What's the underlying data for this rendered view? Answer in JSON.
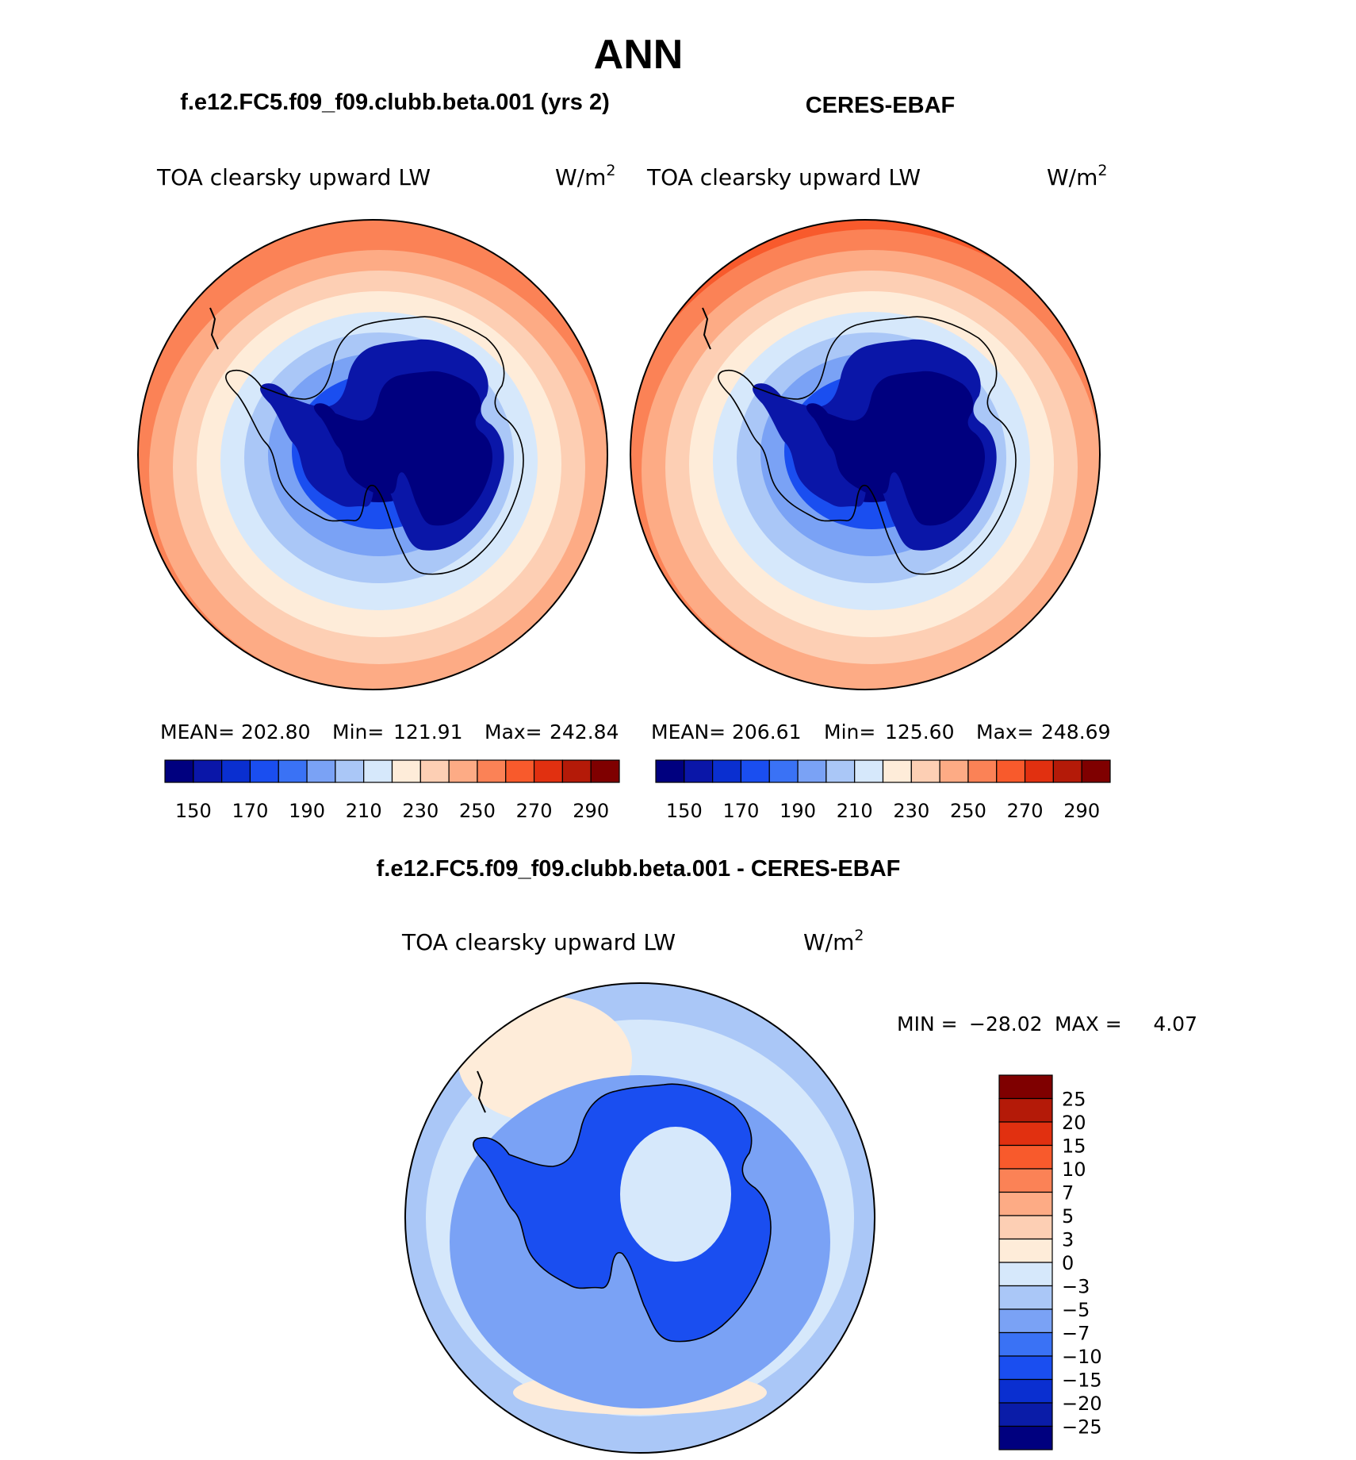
{
  "figure_title": "ANN",
  "colors": {
    "land_outline": "#000000",
    "abs_scale": [
      "#00007f",
      "#0a16a8",
      "#0a2fd0",
      "#1a4ef0",
      "#3a72f5",
      "#7aa2f5",
      "#aac7f7",
      "#d6e8fb",
      "#feecd9",
      "#fdcfb4",
      "#fdab85",
      "#fb8256",
      "#f85a2c",
      "#e13010",
      "#b41a08",
      "#7f0000"
    ],
    "diff_scale": [
      "#00007f",
      "#0a1ca8",
      "#0a2fd0",
      "#1a4ef0",
      "#3a72f5",
      "#7aa2f5",
      "#aac7f7",
      "#d6e8fb",
      "#feecd9",
      "#fdcfb4",
      "#fb8256",
      "#f85a2c",
      "#e13010",
      "#b41a08",
      "#7f0000"
    ]
  },
  "chart_data": [
    {
      "type": "heatmap",
      "title": "f.e12.FC5.f09_f09.clubb.beta.001 (yrs 2)",
      "variable": "TOA clearsky upward LW",
      "units": "W/m",
      "units_sup": "2",
      "projection": "south-polar stereographic",
      "stats": {
        "mean_label": "MEAN=",
        "mean": "202.80",
        "min_label": "Min=",
        "min": "121.91",
        "max_label": "Max=",
        "max": "242.84"
      },
      "ring_levels": [
        130,
        160,
        180,
        195,
        205,
        215,
        225,
        235
      ],
      "colorbar": {
        "orientation": "horizontal",
        "tick_labels": [
          "150",
          "170",
          "190",
          "210",
          "230",
          "250",
          "270",
          "290"
        ]
      }
    },
    {
      "type": "heatmap",
      "title": "CERES-EBAF",
      "variable": "TOA clearsky upward LW",
      "units": "W/m",
      "units_sup": "2",
      "projection": "south-polar stereographic",
      "stats": {
        "mean_label": "MEAN=",
        "mean": "206.61",
        "min_label": "Min=",
        "min": "125.60",
        "max_label": "Max=",
        "max": "248.69"
      },
      "ring_levels": [
        130,
        160,
        180,
        195,
        205,
        215,
        225,
        235,
        245
      ],
      "colorbar": {
        "orientation": "horizontal",
        "tick_labels": [
          "150",
          "170",
          "190",
          "210",
          "230",
          "250",
          "270",
          "290"
        ]
      }
    },
    {
      "type": "heatmap",
      "title": "f.e12.FC5.f09_f09.clubb.beta.001 - CERES-EBAF",
      "variable": "TOA clearsky upward LW",
      "units": "W/m",
      "units_sup": "2",
      "projection": "south-polar stereographic",
      "stats": {
        "min_label": "MIN =",
        "min": "−28.02",
        "max_label": "MAX =",
        "max": "4.07"
      },
      "colorbar": {
        "orientation": "vertical",
        "tick_labels": [
          "25",
          "20",
          "15",
          "10",
          "7",
          "5",
          "3",
          "0",
          "−3",
          "−5",
          "−7",
          "−10",
          "−15",
          "−20",
          "−25"
        ]
      }
    }
  ]
}
